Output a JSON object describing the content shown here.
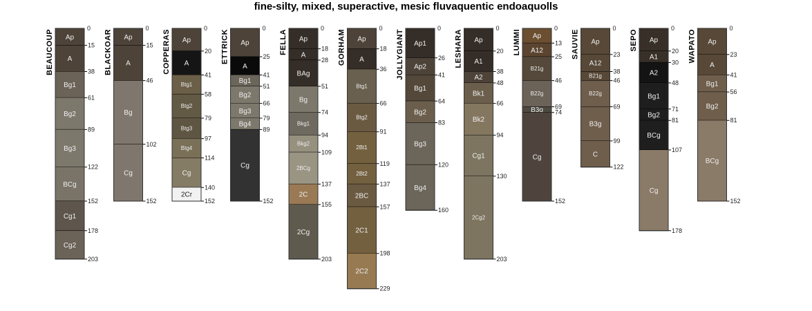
{
  "title": "fine-silty, mixed, superactive, mesic fluvaquentic endoaquolls",
  "profiles": [
    {
      "name": "BEAUCOUP",
      "horizons": [
        [
          "Ap",
          0,
          15,
          "#4d4339"
        ],
        [
          "A",
          15,
          38,
          "#4d4339"
        ],
        [
          "Bg1",
          38,
          61,
          "#6b6258"
        ],
        [
          "Bg2",
          61,
          89,
          "#7d786c"
        ],
        [
          "Bg3",
          89,
          122,
          "#7d786c"
        ],
        [
          "BCg",
          122,
          152,
          "#7a7468"
        ],
        [
          "Cg1",
          152,
          178,
          "#5e564d"
        ],
        [
          "Cg2",
          178,
          203,
          "#6b6258"
        ]
      ]
    },
    {
      "name": "BLACKOAR",
      "horizons": [
        [
          "Ap",
          0,
          15,
          "#4d4339"
        ],
        [
          "A",
          15,
          46,
          "#4d4339"
        ],
        [
          "Bg",
          46,
          102,
          "#7f776d"
        ],
        [
          "Cg",
          102,
          152,
          "#7f776d"
        ]
      ]
    },
    {
      "name": "COPPERAS",
      "horizons": [
        [
          "Ap",
          0,
          20,
          "#4d4339"
        ],
        [
          "A",
          20,
          41,
          "#151515"
        ],
        [
          "Btg1",
          41,
          58,
          "#6b5f48"
        ],
        [
          "Btg2",
          58,
          79,
          "#635a45"
        ],
        [
          "Btg3",
          79,
          97,
          "#5e5542"
        ],
        [
          "Btg4",
          97,
          114,
          "#7a7058"
        ],
        [
          "Cg",
          114,
          140,
          "#857c65"
        ],
        [
          "2Cr",
          140,
          152,
          "#f2f2f2"
        ]
      ]
    },
    {
      "name": "ETTRICK",
      "horizons": [
        [
          "Ap",
          0,
          25,
          "#4d4339"
        ],
        [
          "A",
          25,
          41,
          "#0a0a0a"
        ],
        [
          "Bg1",
          41,
          51,
          "#6b655a"
        ],
        [
          "Bg2",
          51,
          66,
          "#7d786c"
        ],
        [
          "Bg3",
          66,
          79,
          "#7d786c"
        ],
        [
          "Bg4",
          79,
          89,
          "#7d786c"
        ],
        [
          "Cg",
          89,
          152,
          "#323232"
        ]
      ]
    },
    {
      "name": "FELLA",
      "horizons": [
        [
          "Ap",
          0,
          18,
          "#352d27"
        ],
        [
          "A",
          18,
          28,
          "#352d27"
        ],
        [
          "BAg",
          28,
          51,
          "#352d27"
        ],
        [
          "Bg",
          51,
          74,
          "#7d786c"
        ],
        [
          "Bkg1",
          74,
          94,
          "#6f6a60"
        ],
        [
          "Bkg2",
          94,
          109,
          "#96907f"
        ],
        [
          "2BCg",
          109,
          137,
          "#9a9483"
        ],
        [
          "2C",
          137,
          155,
          "#9a7a55"
        ],
        [
          "2Cg",
          155,
          203,
          "#5e5a4e"
        ]
      ]
    },
    {
      "name": "GORHAM",
      "horizons": [
        [
          "Ap",
          0,
          18,
          "#4d4339"
        ],
        [
          "A",
          18,
          36,
          "#352d27"
        ],
        [
          "Btg1",
          36,
          66,
          "#69604f"
        ],
        [
          "Btg2",
          66,
          91,
          "#6b5a42"
        ],
        [
          "2Bt1",
          91,
          119,
          "#73603f"
        ],
        [
          "2Bt2",
          119,
          137,
          "#73603f"
        ],
        [
          "2BC",
          137,
          157,
          "#6b5a42"
        ],
        [
          "2C1",
          157,
          198,
          "#73603f"
        ],
        [
          "2C2",
          198,
          229,
          "#977a52"
        ]
      ]
    },
    {
      "name": "JOLLYGIANT",
      "horizons": [
        [
          "Ap1",
          0,
          26,
          "#352d27"
        ],
        [
          "Ap2",
          26,
          41,
          "#4d4339"
        ],
        [
          "Bg1",
          41,
          64,
          "#53483a"
        ],
        [
          "Bg2",
          64,
          83,
          "#6b5e4c"
        ],
        [
          "Bg3",
          83,
          120,
          "#6b655a"
        ],
        [
          "Bg4",
          120,
          160,
          "#6b655a"
        ]
      ]
    },
    {
      "name": "LESHARA",
      "horizons": [
        [
          "Ap",
          0,
          20,
          "#352d27"
        ],
        [
          "A1",
          20,
          38,
          "#352d27"
        ],
        [
          "A2",
          38,
          48,
          "#4d4339"
        ],
        [
          "Bk1",
          48,
          66,
          "#6b5f4c"
        ],
        [
          "Bk2",
          66,
          94,
          "#84775f"
        ],
        [
          "Cg1",
          94,
          130,
          "#7d7560"
        ],
        [
          "2Cg2",
          130,
          203,
          "#7d7560"
        ]
      ]
    },
    {
      "name": "LUMMI",
      "horizons": [
        [
          "Ap",
          0,
          13,
          "#6b4f30"
        ],
        [
          "A12",
          13,
          25,
          "#5c4530"
        ],
        [
          "B21g",
          25,
          46,
          "#54493a"
        ],
        [
          "B22g",
          46,
          69,
          "#6b6258"
        ],
        [
          "B3g",
          69,
          74,
          "#4d4a40"
        ],
        [
          "Cg",
          74,
          152,
          "#4f443d"
        ]
      ]
    },
    {
      "name": "SAUVIE",
      "horizons": [
        [
          "Ap",
          0,
          23,
          "#574837"
        ],
        [
          "A12",
          23,
          38,
          "#574837"
        ],
        [
          "B21g",
          38,
          46,
          "#574837"
        ],
        [
          "B22g",
          46,
          69,
          "#6f5e4c"
        ],
        [
          "B3g",
          69,
          99,
          "#6f5e4c"
        ],
        [
          "C",
          99,
          122,
          "#6f5e4c"
        ]
      ]
    },
    {
      "name": "SEPO",
      "horizons": [
        [
          "Ap",
          0,
          20,
          "#383028"
        ],
        [
          "A1",
          20,
          30,
          "#383028"
        ],
        [
          "A2",
          30,
          48,
          "#141414"
        ],
        [
          "Bg1",
          48,
          71,
          "#1e1e1e"
        ],
        [
          "Bg2",
          71,
          81,
          "#1e1e1e"
        ],
        [
          "BCg",
          81,
          107,
          "#1e1e1e"
        ],
        [
          "Cg",
          107,
          178,
          "#8a7a68"
        ]
      ]
    },
    {
      "name": "WAPATO",
      "horizons": [
        [
          "Ap",
          0,
          23,
          "#574837"
        ],
        [
          "A",
          23,
          41,
          "#574837"
        ],
        [
          "Bg1",
          41,
          56,
          "#6f5e4c"
        ],
        [
          "Bg2",
          56,
          81,
          "#6f5e4c"
        ],
        [
          "BCg",
          81,
          152,
          "#8a7a68"
        ]
      ]
    }
  ]
}
